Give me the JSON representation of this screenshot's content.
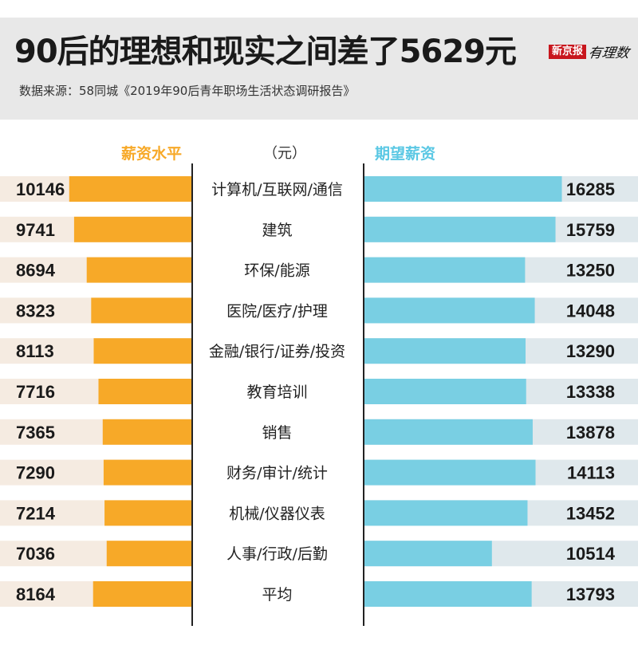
{
  "header": {
    "title": "90后的理想和现实之间差了5629元",
    "source": "数据来源：58同城《2019年90后青年职场生活状态调研报告》",
    "logo_brand": "新京报",
    "logo_script": "有理数"
  },
  "columns": {
    "left": "薪资水平",
    "unit": "（元）",
    "right": "期望薪资"
  },
  "colors": {
    "actual": "#f7a928",
    "expected": "#79cfe3"
  },
  "chart_data": {
    "type": "bar",
    "title": "90后的理想和现实之间差了5629元",
    "unit": "元",
    "categories": [
      "计算机/互联网/通信",
      "建筑",
      "环保/能源",
      "医院/医疗/护理",
      "金融/银行/证券/投资",
      "教育培训",
      "销售",
      "财务/审计/统计",
      "机械/仪器仪表",
      "人事/行政/后勤",
      "平均"
    ],
    "series": [
      {
        "name": "薪资水平",
        "values": [
          10146,
          9741,
          8694,
          8323,
          8113,
          7716,
          7365,
          7290,
          7214,
          7036,
          8164
        ]
      },
      {
        "name": "期望薪资",
        "values": [
          16285,
          15759,
          13250,
          14048,
          13290,
          13338,
          13878,
          14113,
          13452,
          10514,
          13793
        ]
      }
    ]
  }
}
